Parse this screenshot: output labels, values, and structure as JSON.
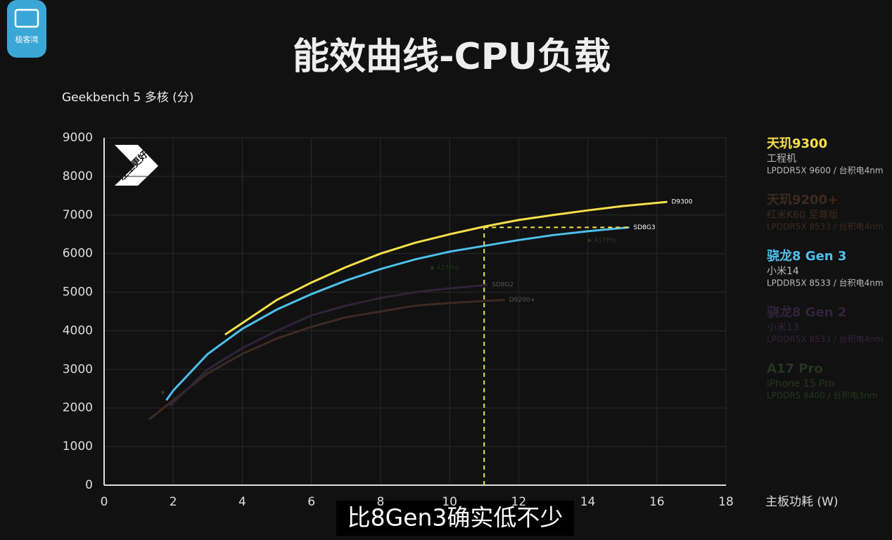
{
  "logo": "极客湾",
  "caption": "比8Gen3确实低不少",
  "chart_data": {
    "type": "line",
    "title": "能效曲线-CPU负载",
    "y_label": "Geekbench 5 多核 (分)",
    "x_label": "主板功耗 (W)",
    "badge": "左上更好",
    "xlim": [
      0,
      18
    ],
    "xticks": [
      0,
      2,
      4,
      6,
      8,
      10,
      12,
      14,
      16,
      18
    ],
    "ylim": [
      0,
      9000
    ],
    "yticks": [
      0,
      1000,
      2000,
      3000,
      4000,
      5000,
      6000,
      7000,
      8000,
      9000
    ],
    "grid": true,
    "guide": {
      "x": 11,
      "y": 6680,
      "color": "#f5e04a"
    },
    "series": [
      {
        "name": "天玑9300",
        "device": "工程机",
        "memory": "LPDDR5X 9600 / 台积电4nm",
        "end_label": "D9300",
        "color": "#f5e04a",
        "x": [
          3.5,
          4,
          5,
          6,
          7,
          8,
          9,
          10,
          11,
          12,
          13,
          14,
          15,
          16.3
        ],
        "values": [
          3900,
          4200,
          4800,
          5250,
          5650,
          6000,
          6280,
          6500,
          6700,
          6870,
          7000,
          7120,
          7230,
          7340
        ]
      },
      {
        "name": "天玑9200+",
        "device": "红米K60 至尊版",
        "memory": "LPDDR5X 8533 / 台积电4nm",
        "end_label": "D9200+",
        "color": "#3d2b22",
        "x": [
          1.3,
          2,
          3,
          4,
          5,
          6,
          7,
          8,
          9,
          10,
          11.6
        ],
        "values": [
          1700,
          2200,
          2900,
          3400,
          3800,
          4100,
          4350,
          4500,
          4650,
          4720,
          4800
        ]
      },
      {
        "name": "骁龙8 Gen 3",
        "device": "小米14",
        "memory": "LPDDR5X 8533 / 台积电4nm",
        "end_label": "SD8G3",
        "color": "#4cc0ec",
        "x": [
          1.8,
          2,
          3,
          4,
          5,
          6,
          7,
          8,
          9,
          10,
          11,
          12,
          13,
          14,
          15.2
        ],
        "values": [
          2200,
          2450,
          3400,
          4050,
          4550,
          4950,
          5300,
          5600,
          5850,
          6050,
          6200,
          6350,
          6480,
          6580,
          6680
        ]
      },
      {
        "name": "骁龙8 Gen 2",
        "device": "小米13",
        "memory": "LPDDR5X 8533 / 台积电4nm",
        "end_label": "SD8G2",
        "color": "#30243a",
        "x": [
          1.9,
          3,
          4,
          5,
          6,
          7,
          8,
          9,
          10,
          11.1
        ],
        "values": [
          2050,
          3000,
          3550,
          4000,
          4400,
          4650,
          4850,
          5000,
          5100,
          5190
        ]
      },
      {
        "name": "A17 Pro",
        "device": "iPhone 15 Pro",
        "memory": "LPDDR5 6400 / 台积电3nm",
        "color": "#27351f",
        "marker_only": true,
        "x": [
          1.7,
          9.5,
          14.05
        ],
        "values": [
          2400,
          5630,
          6340
        ],
        "point_labels": [
          null,
          "A17Pro",
          "A17Pro"
        ]
      }
    ]
  }
}
